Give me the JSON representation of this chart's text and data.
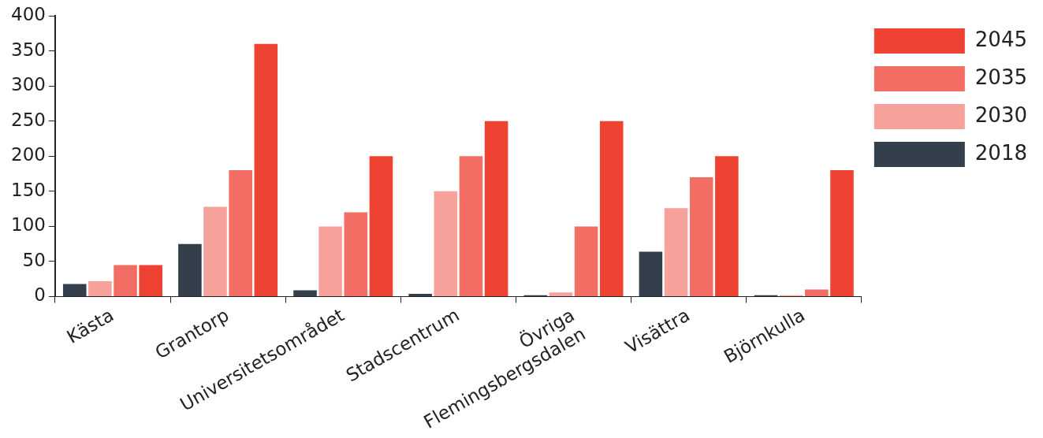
{
  "chart_data": {
    "type": "bar",
    "categories": [
      "Kästa",
      "Grantorp",
      "Universitetsområdet",
      "Stadscentrum",
      "Övriga\nFlemingsbergsdalen",
      "Visättra",
      "Björnkulla"
    ],
    "series": [
      {
        "name": "2018",
        "color": "#333f4a",
        "values": [
          18,
          75,
          9,
          4,
          2,
          64,
          2
        ]
      },
      {
        "name": "2030",
        "color": "#f6a29a",
        "values": [
          22,
          128,
          100,
          150,
          6,
          126,
          2
        ]
      },
      {
        "name": "2035",
        "color": "#f26d63",
        "values": [
          45,
          180,
          120,
          200,
          100,
          170,
          10
        ]
      },
      {
        "name": "2045",
        "color": "#ee4233",
        "values": [
          45,
          360,
          200,
          250,
          250,
          200,
          180
        ]
      }
    ],
    "ylim": [
      0,
      400
    ],
    "yticks": [
      0,
      50,
      100,
      150,
      200,
      250,
      300,
      350,
      400
    ],
    "grid": false,
    "legend": "right"
  }
}
